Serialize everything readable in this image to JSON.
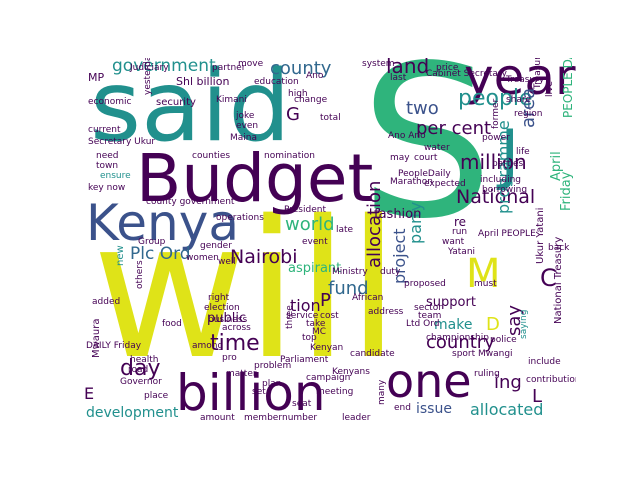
{
  "colors": {
    "purple": "#440154",
    "indigo": "#3b528b",
    "teal": "#21908d",
    "green": "#2fb47c",
    "lime": "#8fd744",
    "yellow": "#dfe318",
    "navy": "#31688e"
  },
  "words": {
    "s": "S",
    "will": "will",
    "said": "said",
    "budget": "Budget",
    "kenya": "Kenya",
    "billion": "billion",
    "year": "year",
    "one": "one",
    "j": "J",
    "people": "people",
    "million": "million",
    "government": "government",
    "county": "county",
    "land": "land",
    "two": "two",
    "per_cent": "per cent",
    "area": "area",
    "national": "National",
    "world": "world",
    "nairobi": "Nairobi",
    "plc_ord": "Plc Ord",
    "time": "time",
    "day": "day",
    "fund": "fund",
    "aspirant": "aspirant",
    "allocation": "allocation",
    "project": "project",
    "party": "party",
    "programme": "programme",
    "country": "country",
    "public": "public",
    "say": "say",
    "ing": "ing",
    "issue": "issue",
    "allocated": "allocated",
    "development": "development",
    "fashion": "fashion",
    "support": "support",
    "make": "make",
    "m": "M",
    "c": "C",
    "d": "D",
    "l": "L",
    "e": "E",
    "p": "P",
    "g": "G",
    "tion": "tion",
    "friday": "Friday",
    "april": "April",
    "treasury": "Treasury",
    "shl_billion": "Shl billion",
    "president": "President",
    "parliament": "Parliament",
    "ltd_ord": "Ltd Ord",
    "county_government": "county government",
    "service": "service",
    "kenyan": "Kenyan",
    "road": "road",
    "governor": "Governor",
    "place": "place",
    "set": "set",
    "amount": "amount",
    "member": "member",
    "number": "number",
    "leader": "leader",
    "nomination": "nomination",
    "education": "education",
    "security": "security",
    "mp": "MP",
    "town": "town",
    "key_now": "key now",
    "ensure": "ensure",
    "current": "current",
    "need": "need",
    "counties": "counties",
    "joke": "joke",
    "even": "even",
    "maina": "Maina",
    "move": "move",
    "right": "right",
    "across": "across",
    "among": "among",
    "business": "business",
    "election": "election",
    "food": "food",
    "women": "women",
    "well": "well",
    "event": "event",
    "take": "take",
    "top": "top",
    "mc": "MC",
    "cost": "cost",
    "candidate": "candidate",
    "re": "re",
    "run": "run",
    "want": "want",
    "yatani": "Yatani",
    "proposed": "proposed",
    "sector": "sector",
    "team": "team",
    "end": "end",
    "many": "many",
    "marathon": "Marathon",
    "peopledaily": "PeopleDaily",
    "power": "power",
    "former": "former",
    "including": "including",
    "last": "last",
    "price": "price",
    "may": "may",
    "parties": "parties",
    "live": "live",
    "share": "share",
    "people_daily": "PEOPLE DAILY",
    "ukur_yatani": "Ukur Yatani",
    "national_treasury": "National Treasury",
    "saying": "saying",
    "yesterday": "yesterday",
    "group": "Group",
    "others": "others",
    "new": "new",
    "mwaura": "Mwaura",
    "three": "three",
    "kenyans": "Kenyans",
    "address": "address",
    "african": "African",
    "pro": "pro",
    "plan": "plan",
    "health": "health",
    "seat": "seat",
    "gender": "gender",
    "operations": "operations",
    "water": "water",
    "court": "court",
    "life": "life",
    "region": "region",
    "system": "system",
    "partner": "partner",
    "high": "high",
    "total": "total",
    "ano": "Ano",
    "ano_ano": "Ano Ano",
    "see": "see",
    "also": "also",
    "change": "change",
    "expected": "expected",
    "borrowing": "borrowing",
    "cabinet_secretary": "Cabinet Secretary",
    "sport": "sport",
    "ruling": "ruling",
    "april_people": "April PEOPLE",
    "ministry": "Ministry",
    "kimani": "Kimani",
    "economic": "economic",
    "secretary_ukur": "Secretary Ukur",
    "meeting": "meeting",
    "mwangi": "Mwangi",
    "matter": "matter",
    "daily_friday": "DAILY Friday",
    "added": "added",
    "must": "must",
    "duty": "duty",
    "late": "late",
    "judiciary": "Judiciary",
    "back": "back",
    "contribution": "contribution",
    "championship": "championship",
    "include": "include",
    "police": "police",
    "good": "good",
    "african_2": "Africa",
    "campaign": "campaign",
    "problem": "problem",
    "lower": "lower",
    "citizen": "citizen",
    "rise": "rise",
    "deputy": "deputy",
    "first": "first",
    "key": "key",
    "ago": "ago",
    "plc": "Plc"
  }
}
